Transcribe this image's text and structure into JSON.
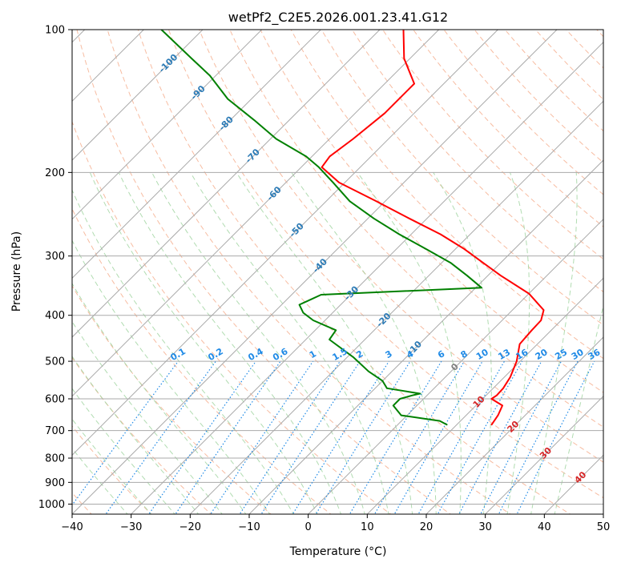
{
  "chart_data": {
    "type": "line",
    "subtype": "skew-t log-p diagram",
    "title": "wetPf2_C2E5.2026.001.23.41.G12",
    "xlabel": "Temperature (°C)",
    "ylabel": "Pressure (hPa)",
    "xlim": [
      -40,
      50
    ],
    "ylim": [
      1050,
      100
    ],
    "x_ticks": [
      -40,
      -30,
      -20,
      -10,
      0,
      10,
      20,
      30,
      40,
      50
    ],
    "y_ticks": [
      100,
      200,
      300,
      400,
      500,
      600,
      700,
      800,
      900,
      1000
    ],
    "isotherm_labels": [
      "-100",
      "-90",
      "-80",
      "-70",
      "-60",
      "-50",
      "-40",
      "-30",
      "-20",
      "-10",
      "0",
      "10",
      "20",
      "30",
      "40"
    ],
    "isotherm_label_values": [
      -100,
      -90,
      -80,
      -70,
      -60,
      -50,
      -40,
      -30,
      -20,
      -10,
      0,
      10,
      20,
      30,
      40
    ],
    "isotherm_label_pressures": [
      118,
      136,
      158,
      185,
      222,
      265,
      315,
      360,
      410,
      470,
      515,
      610,
      688,
      782,
      880
    ],
    "mixing_ratio_labels": [
      "0.1",
      "0.2",
      "0.4",
      "0.6",
      "1",
      "1.5",
      "2",
      "3",
      "4",
      "6",
      "8",
      "10",
      "13",
      "16",
      "20",
      "25",
      "30",
      "36"
    ],
    "mixing_ratio_values": [
      0.1,
      0.2,
      0.4,
      0.6,
      1,
      1.5,
      2,
      3,
      4,
      6,
      8,
      10,
      13,
      16,
      20,
      25,
      30,
      36
    ],
    "colors": {
      "temperature": "#ff0000",
      "dewpoint": "#008000",
      "isotherm": "#aaaaaa",
      "dry_adiabat": "#f4a582",
      "moist_adiabat": "#9ed39e",
      "mixing_ratio": "#1f8ae6",
      "label_cold": "#2c7bb6",
      "label_zero": "#808080",
      "label_warm": "#d62728"
    },
    "series": [
      {
        "name": "temperature",
        "pressure": [
          680,
          650,
          620,
          600,
          590,
          570,
          540,
          500,
          460,
          430,
          410,
          390,
          360,
          330,
          310,
          290,
          270,
          250,
          230,
          210,
          195,
          185,
          170,
          150,
          130,
          115,
          100
        ],
        "temperature": [
          15.9,
          15.4,
          14.5,
          11.5,
          11.8,
          11.7,
          11.0,
          9.4,
          7.0,
          6.7,
          6.6,
          5.3,
          0.0,
          -7.8,
          -13.0,
          -18.5,
          -25.0,
          -33.0,
          -41.5,
          -51.0,
          -56.5,
          -57.0,
          -56.0,
          -55.0,
          -55.0,
          -61.0,
          -66.0
        ]
      },
      {
        "name": "dewpoint",
        "pressure": [
          680,
          668,
          650,
          620,
          600,
          590,
          585,
          570,
          550,
          525,
          490,
          450,
          430,
          410,
          395,
          380,
          362,
          350,
          330,
          310,
          290,
          270,
          250,
          230,
          210,
          195,
          185,
          170,
          155,
          140,
          125,
          115,
          100
        ],
        "dewpoint": [
          8.3,
          6.5,
          -1.0,
          -4.0,
          -4.0,
          -2.5,
          -1.5,
          -8.0,
          -10.0,
          -14.0,
          -19.0,
          -26.0,
          -26.5,
          -32.0,
          -35.0,
          -37.0,
          -35.0,
          -9.0,
          -13.5,
          -18.5,
          -25.0,
          -32.0,
          -39.0,
          -46.0,
          -52.0,
          -57.0,
          -61.0,
          -69.0,
          -76.0,
          -84.0,
          -91.0,
          -97.0,
          -107.0
        ]
      }
    ]
  }
}
